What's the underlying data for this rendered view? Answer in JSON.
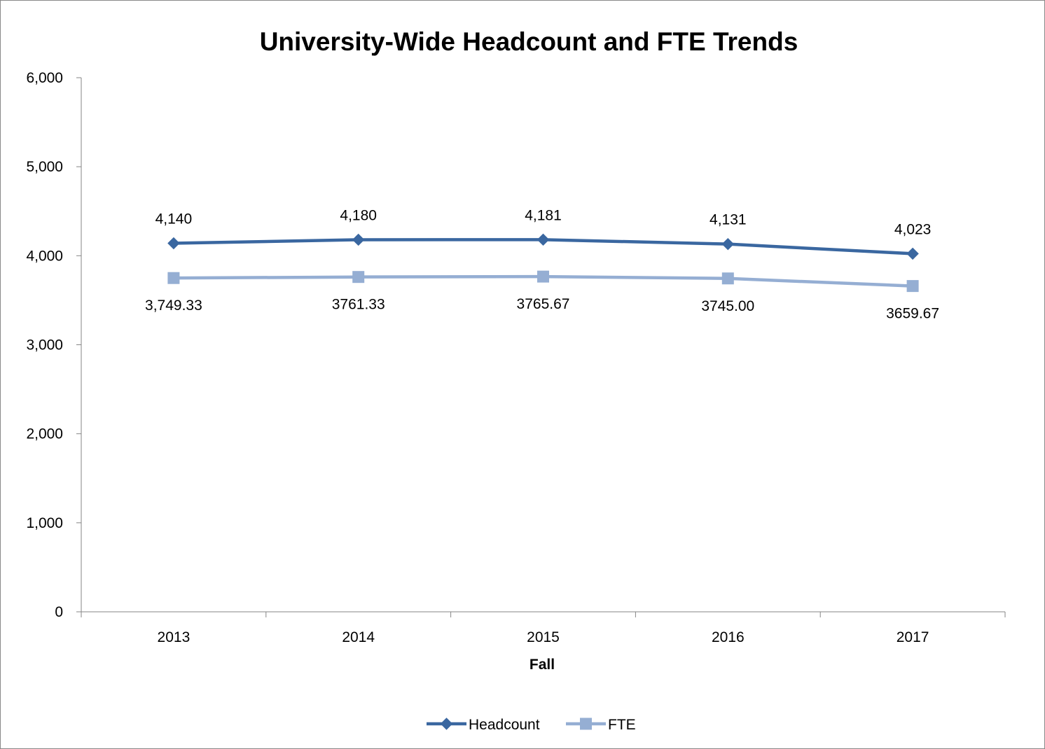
{
  "chart_data": {
    "type": "line",
    "title": "University-Wide Headcount and FTE Trends",
    "xlabel": "Fall",
    "ylabel": "",
    "ylim": [
      0,
      6000
    ],
    "yticks": [
      "0",
      "1,000",
      "2,000",
      "3,000",
      "4,000",
      "5,000",
      "6,000"
    ],
    "categories": [
      "2013",
      "2014",
      "2015",
      "2016",
      "2017"
    ],
    "grid": false,
    "legend_position": "bottom",
    "series": [
      {
        "name": "Headcount",
        "color": "#3A67A0",
        "marker": "diamond",
        "values": [
          4140,
          4180,
          4181,
          4131,
          4023
        ],
        "labels": [
          "4,140",
          "4,180",
          "4,181",
          "4,131",
          "4,023"
        ],
        "label_position": "above"
      },
      {
        "name": "FTE",
        "color": "#95AED3",
        "marker": "square",
        "values": [
          3749.33,
          3761.33,
          3765.67,
          3745.0,
          3659.67
        ],
        "labels": [
          "3,749.33",
          "3761.33",
          "3765.67",
          "3745.00",
          "3659.67"
        ],
        "label_position": "below"
      }
    ]
  }
}
